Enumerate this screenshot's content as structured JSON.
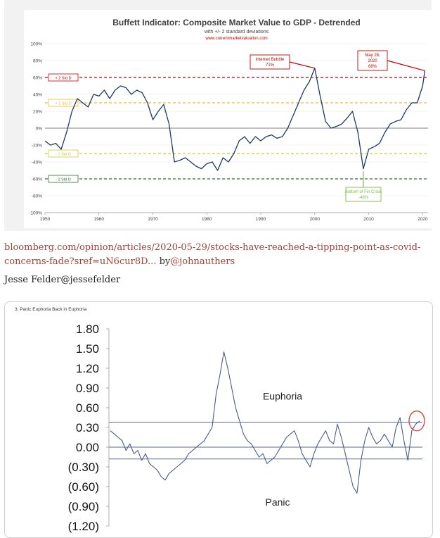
{
  "chart_data": [
    {
      "type": "line",
      "title": "Buffett Indicator: Composite Market Value to GDP - Detrended",
      "subtitle": "with +/- 2 standard deviations",
      "source": "www.currentmarketvaluation.com",
      "xlim": [
        1950,
        2021
      ],
      "ylim": [
        -100,
        100
      ],
      "x_ticks": [
        "1950",
        "1960",
        "1970",
        "1980",
        "1990",
        "2000",
        "2010",
        "2020"
      ],
      "y_ticks": [
        "100%",
        "80%",
        "60%",
        "40%",
        "20%",
        "0%",
        "-20%",
        "-40%",
        "-60%",
        "-80%",
        "-100%"
      ],
      "grid": true,
      "series": [
        {
          "color": "#1f3864",
          "x": [
            1950,
            1951,
            1952,
            1953,
            1954,
            1955,
            1956,
            1957,
            1958,
            1959,
            1960,
            1961,
            1962,
            1963,
            1964,
            1965,
            1966,
            1967,
            1968,
            1969,
            1970,
            1971,
            1972,
            1973,
            1974,
            1975,
            1976,
            1977,
            1978,
            1979,
            1980,
            1981,
            1982,
            1983,
            1984,
            1985,
            1986,
            1987,
            1988,
            1989,
            1990,
            1991,
            1992,
            1993,
            1994,
            1995,
            1996,
            1997,
            1998,
            1999,
            2000,
            2001,
            2002,
            2003,
            2004,
            2005,
            2006,
            2007,
            2008,
            2009,
            2010,
            2011,
            2012,
            2013,
            2014,
            2015,
            2016,
            2017,
            2018,
            2019,
            2020,
            2020.4
          ],
          "y": [
            -15,
            -20,
            -18,
            -25,
            -5,
            20,
            35,
            30,
            25,
            40,
            38,
            45,
            35,
            45,
            50,
            48,
            40,
            45,
            42,
            30,
            10,
            20,
            28,
            5,
            -40,
            -38,
            -35,
            -40,
            -45,
            -48,
            -42,
            -40,
            -50,
            -35,
            -40,
            -30,
            -15,
            -10,
            -18,
            -10,
            -15,
            -10,
            -8,
            -12,
            -10,
            0,
            15,
            30,
            45,
            55,
            71,
            38,
            8,
            0,
            2,
            5,
            12,
            20,
            -5,
            -48,
            -25,
            -22,
            -18,
            -5,
            5,
            8,
            10,
            22,
            30,
            30,
            50,
            68
          ]
        }
      ],
      "reference_lines": [
        {
          "label": "+ 2 Std D",
          "value": 60,
          "color": "#c00000"
        },
        {
          "label": "+ 1 Std D",
          "value": 30,
          "color": "#e8c130"
        },
        {
          "label": "0",
          "value": 0,
          "color": "#7f7f7f"
        },
        {
          "label": "- 1 Std D",
          "value": -30,
          "color": "#c9c93a"
        },
        {
          "label": "- 2 Std D",
          "value": -60,
          "color": "#2e6b3a"
        }
      ],
      "annotations": [
        {
          "lines": [
            "Internet Bubble",
            "71%"
          ],
          "color": "#c00000"
        },
        {
          "lines": [
            "May 28,",
            "2020",
            "68%"
          ],
          "color": "#c00000"
        },
        {
          "lines": [
            "Bottom of Fin Crisis",
            "-48%"
          ],
          "color": "#7dbb45"
        }
      ]
    },
    {
      "type": "line",
      "title": "3. Panic Euphoria Back in Euphoria",
      "ylim": [
        -1.2,
        1.8
      ],
      "y_ticks": [
        "1.80",
        "1.50",
        "1.20",
        "0.90",
        "0.60",
        "0.30",
        "0.00",
        "(0.30)",
        "(0.60)",
        "(0.90)",
        "(1.20)"
      ],
      "series": [
        {
          "color": "#4a5d86",
          "values": [
            0.25,
            0.2,
            0.15,
            0.1,
            -0.05,
            0.05,
            -0.1,
            -0.05,
            -0.2,
            -0.1,
            -0.25,
            -0.3,
            -0.35,
            -0.45,
            -0.5,
            -0.4,
            -0.35,
            -0.3,
            -0.25,
            -0.2,
            -0.1,
            -0.05,
            0.0,
            0.05,
            0.1,
            0.2,
            0.3,
            0.8,
            1.1,
            1.45,
            1.2,
            0.9,
            0.6,
            0.4,
            0.2,
            0.1,
            0.05,
            -0.05,
            -0.15,
            -0.1,
            -0.25,
            -0.2,
            -0.15,
            -0.05,
            0.05,
            0.15,
            0.2,
            0.25,
            0.1,
            -0.1,
            -0.2,
            -0.3,
            -0.1,
            0.05,
            0.15,
            0.25,
            0.1,
            0.05,
            0.35,
            0.15,
            -0.1,
            -0.35,
            -0.6,
            -0.7,
            -0.2,
            0.1,
            0.3,
            0.15,
            0.05,
            0.1,
            0.2,
            0.1,
            0.0,
            0.3,
            0.45,
            0.1,
            -0.2,
            0.25,
            0.35,
            0.4
          ]
        }
      ],
      "reference_lines": [
        {
          "label": "Euphoria",
          "value": 0.38
        },
        {
          "value": 0.0
        },
        {
          "label": "Panic",
          "value": -0.18
        }
      ]
    }
  ],
  "link": {
    "url_text": "bloomberg.com/opinion/articles/2020-05-29/stocks-have-reached-a-tipping-point-as-covid-concerns-fade?sref=uN6cur8D...",
    "by_text": " by",
    "handle": "@johnauthers"
  },
  "author": {
    "text": "Jesse Felder@jessefelder"
  }
}
